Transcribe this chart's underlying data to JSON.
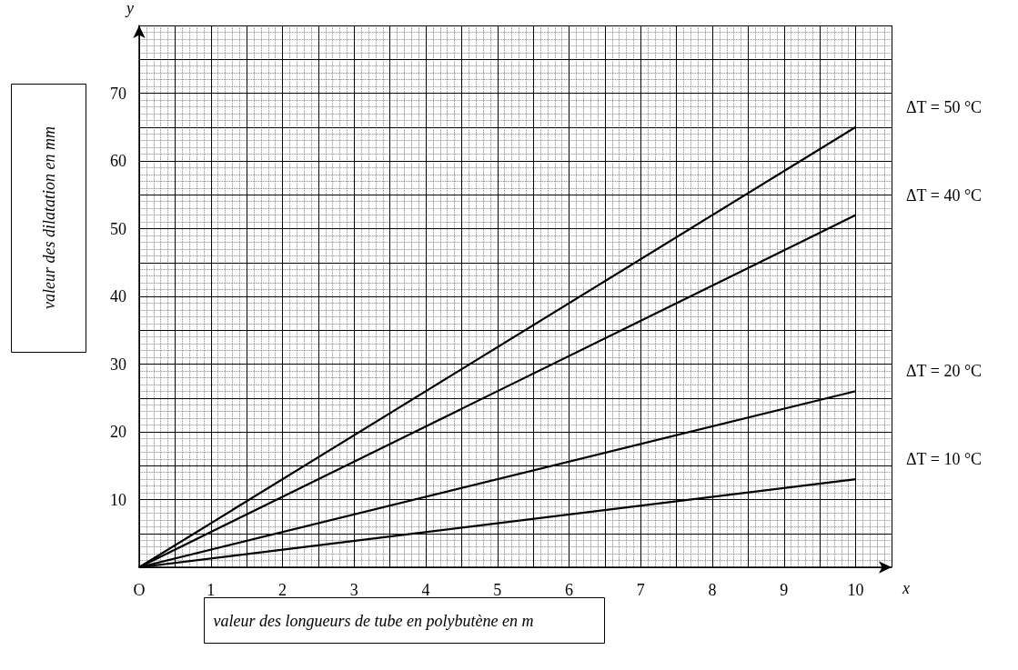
{
  "chart_data": {
    "type": "line",
    "xlabel": "valeur des longueurs de tube en polybutène en m",
    "ylabel": "valeur des dilatation en mm",
    "annotations": [
      "x",
      "y"
    ],
    "x": [
      0,
      10
    ],
    "series": [
      {
        "name": "ΔT = 50 °C",
        "color": "#000000",
        "values": [
          0,
          65
        ]
      },
      {
        "name": "ΔT = 40 °C",
        "color": "#000000",
        "values": [
          0,
          52
        ]
      },
      {
        "name": "ΔT = 20 °C",
        "color": "#000000",
        "values": [
          0,
          26
        ]
      },
      {
        "name": "ΔT = 10 °C",
        "color": "#000000",
        "values": [
          0,
          13
        ]
      }
    ],
    "xlim": [
      0,
      10.5
    ],
    "xticks": [
      {
        "value": 0,
        "label": "O"
      },
      1,
      2,
      3,
      4,
      5,
      6,
      7,
      8,
      9,
      10
    ],
    "ylim": [
      0,
      80
    ],
    "yticks": [
      {
        "value": 0,
        "label": null
      },
      10,
      20,
      30,
      40,
      50,
      60,
      70
    ],
    "grid": true,
    "marker": "none",
    "line_style": "solid",
    "legend": false
  }
}
